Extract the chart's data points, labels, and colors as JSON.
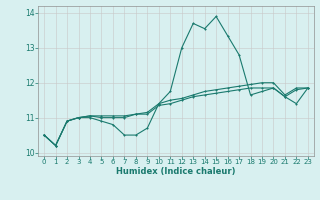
{
  "xlabel": "Humidex (Indice chaleur)",
  "x": [
    0,
    1,
    2,
    3,
    4,
    5,
    6,
    7,
    8,
    9,
    10,
    11,
    12,
    13,
    14,
    15,
    16,
    17,
    18,
    19,
    20,
    21,
    22,
    23
  ],
  "line1_y": [
    10.5,
    10.2,
    10.9,
    11.0,
    11.0,
    10.9,
    10.8,
    10.5,
    10.5,
    10.7,
    11.4,
    11.75,
    13.0,
    13.7,
    13.55,
    13.9,
    13.35,
    12.8,
    11.65,
    11.75,
    11.85,
    11.6,
    11.4,
    11.85
  ],
  "line2_y": [
    10.5,
    10.2,
    10.9,
    11.0,
    11.05,
    11.05,
    11.05,
    11.05,
    11.1,
    11.15,
    11.4,
    11.5,
    11.55,
    11.65,
    11.75,
    11.8,
    11.85,
    11.9,
    11.95,
    12.0,
    12.0,
    11.65,
    11.85,
    11.85
  ],
  "line3_y": [
    10.5,
    10.2,
    10.9,
    11.0,
    11.05,
    11.0,
    11.0,
    11.0,
    11.1,
    11.1,
    11.35,
    11.4,
    11.5,
    11.6,
    11.65,
    11.7,
    11.75,
    11.8,
    11.85,
    11.85,
    11.85,
    11.6,
    11.8,
    11.85
  ],
  "line_color": "#1a7a6e",
  "bg_color": "#d8f0f0",
  "grid_color": "#c8c8c8",
  "ylim": [
    9.9,
    14.2
  ],
  "xlim": [
    -0.5,
    23.5
  ],
  "yticks": [
    10,
    11,
    12,
    13,
    14
  ],
  "xticks": [
    0,
    1,
    2,
    3,
    4,
    5,
    6,
    7,
    8,
    9,
    10,
    11,
    12,
    13,
    14,
    15,
    16,
    17,
    18,
    19,
    20,
    21,
    22,
    23
  ],
  "tick_fontsize": 5.0,
  "xlabel_fontsize": 6.0,
  "ytick_fontsize": 5.5
}
